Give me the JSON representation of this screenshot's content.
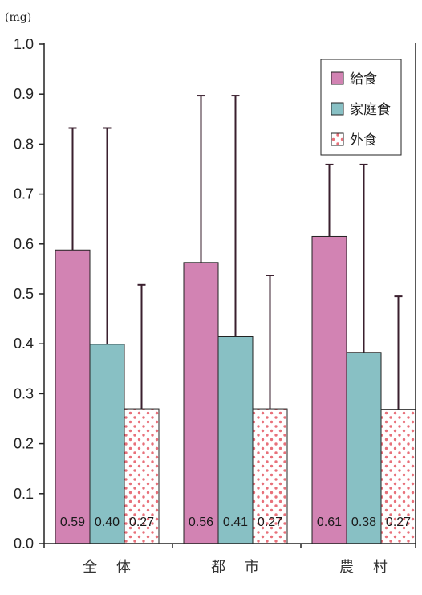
{
  "chart_data": {
    "type": "bar",
    "unit_label": "(mg)",
    "categories": [
      "全 体",
      "都 市",
      "農 村"
    ],
    "series": [
      {
        "name": "給食",
        "values": [
          0.59,
          0.56,
          0.61
        ],
        "bar_heights": [
          0.588,
          0.563,
          0.615
        ],
        "error_upper": [
          0.832,
          0.897,
          0.759
        ],
        "labels": [
          "0.59",
          "0.56",
          "0.61"
        ]
      },
      {
        "name": "家庭食",
        "values": [
          0.4,
          0.41,
          0.38
        ],
        "bar_heights": [
          0.399,
          0.414,
          0.383
        ],
        "error_upper": [
          0.832,
          0.897,
          0.759
        ],
        "labels": [
          "0.40",
          "0.41",
          "0.38"
        ]
      },
      {
        "name": "外食",
        "values": [
          0.27,
          0.27,
          0.27
        ],
        "bar_heights": [
          0.27,
          0.27,
          0.269
        ],
        "error_upper": [
          0.518,
          0.537,
          0.495
        ],
        "labels": [
          "0.27",
          "0.27",
          "0.27"
        ]
      }
    ],
    "ylim": [
      0,
      1.0
    ],
    "yticks": [
      "0.0",
      "0.1",
      "0.2",
      "0.3",
      "0.4",
      "0.5",
      "0.6",
      "0.7",
      "0.8",
      "0.9",
      "1.0"
    ],
    "grid": false,
    "legend_position": "top-right",
    "colors": {
      "給食": "#d283b3",
      "家庭食": "#88c0c4",
      "外食_dots": "#e8707a",
      "error_bar": "#3a1f2e",
      "axis": "#222222"
    }
  }
}
